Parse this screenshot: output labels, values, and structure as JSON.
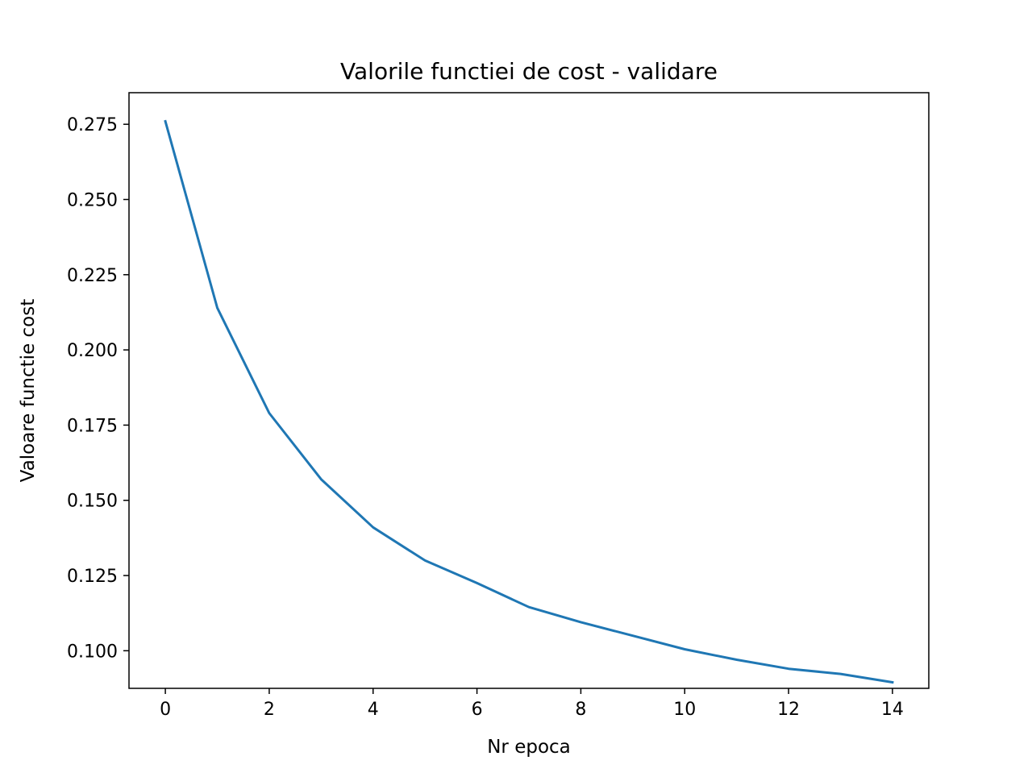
{
  "chart_data": {
    "type": "line",
    "title": "Valorile functiei de cost - validare",
    "xlabel": "Nr epoca",
    "ylabel": "Valoare functie cost",
    "xlim": [
      -0.7,
      14.7
    ],
    "ylim": [
      0.0875,
      0.2855
    ],
    "xticks": [
      0,
      2,
      4,
      6,
      8,
      10,
      12,
      14
    ],
    "xtick_labels": [
      "0",
      "2",
      "4",
      "6",
      "8",
      "10",
      "12",
      "14"
    ],
    "yticks": [
      0.1,
      0.125,
      0.15,
      0.175,
      0.2,
      0.225,
      0.25,
      0.275
    ],
    "ytick_labels": [
      "0.100",
      "0.125",
      "0.150",
      "0.175",
      "0.200",
      "0.225",
      "0.250",
      "0.275"
    ],
    "grid": false,
    "legend": "none",
    "series": [
      {
        "color": "#1f77b4",
        "x": [
          0,
          1,
          2,
          3,
          4,
          5,
          6,
          7,
          8,
          9,
          10,
          11,
          12,
          13,
          14
        ],
        "y": [
          0.276,
          0.214,
          0.179,
          0.157,
          0.141,
          0.13,
          0.1225,
          0.1145,
          0.1095,
          0.105,
          0.1005,
          0.097,
          0.094,
          0.0923,
          0.0895
        ]
      }
    ]
  }
}
